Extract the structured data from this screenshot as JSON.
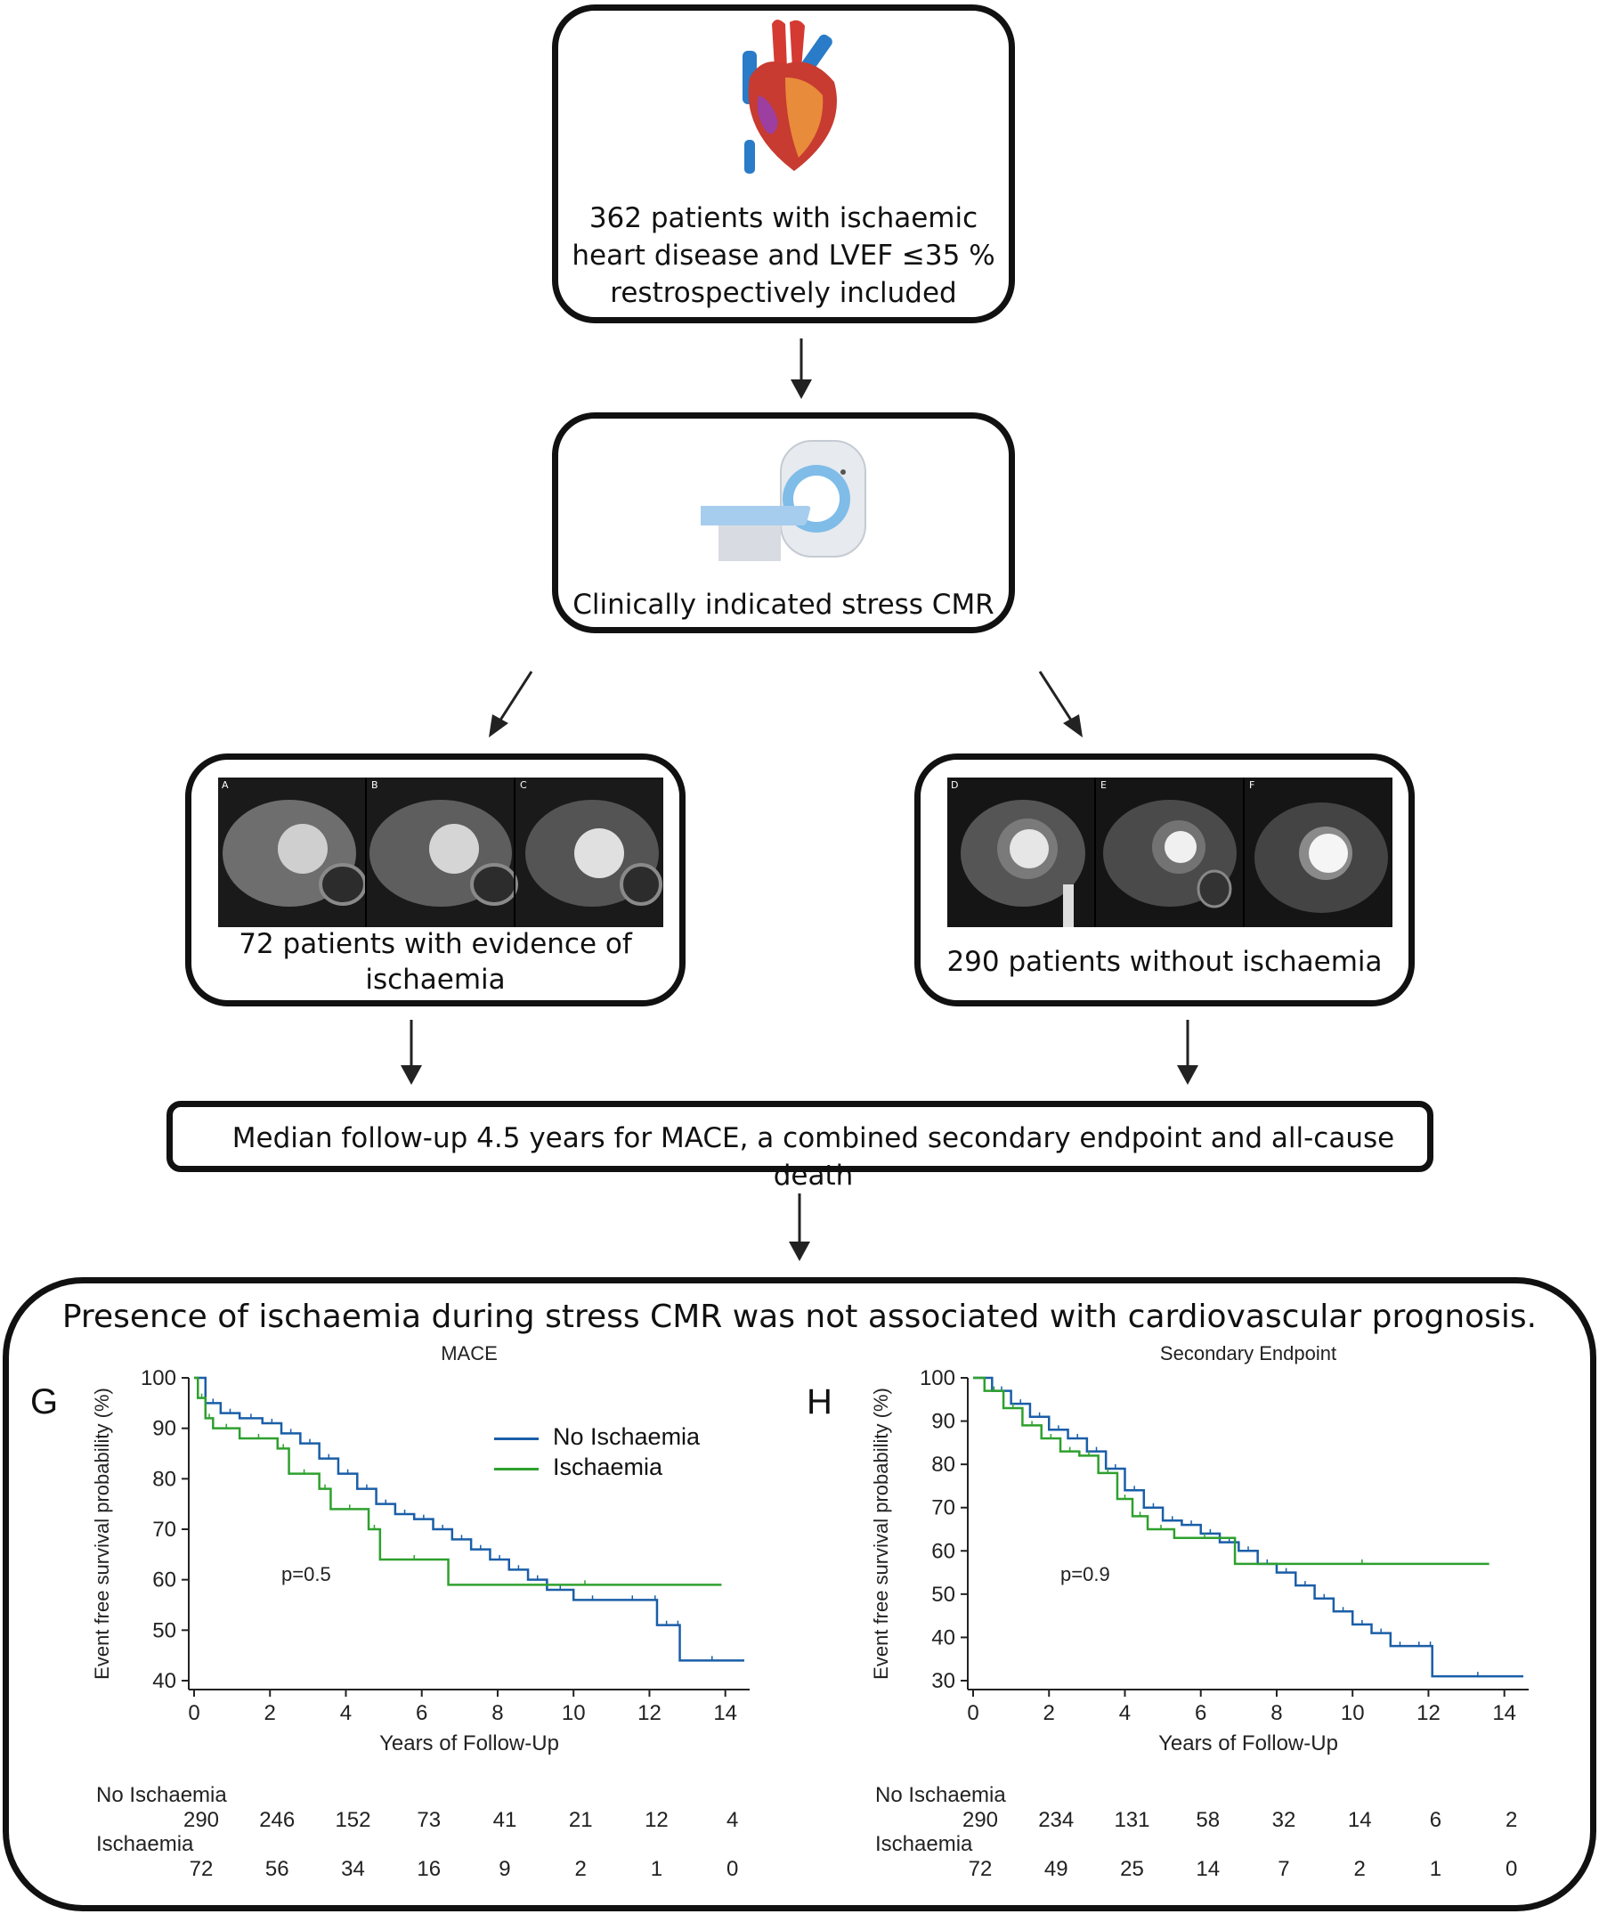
{
  "flow": {
    "box1": {
      "line1": "362 patients with ischaemic",
      "line2": "heart disease and LVEF ≤35 %",
      "line3": "restrospectively included",
      "icon": "heart-icon"
    },
    "box2": {
      "label": "Clinically indicated stress CMR",
      "icon": "mri-scanner-icon"
    },
    "box3": {
      "line1": "72 patients with evidence of",
      "line2": "ischaemia",
      "panels": [
        "A",
        "B",
        "C"
      ]
    },
    "box4": {
      "label": "290 patients without ischaemia",
      "panels": [
        "D",
        "E",
        "F"
      ]
    },
    "box5": {
      "label": "Median follow-up 4.5 years for MACE, a combined secondary endpoint and all-cause death"
    },
    "result": {
      "title": "Presence of ischaemia during stress CMR was not associated with cardiovascular prognosis."
    }
  },
  "colors": {
    "no_ischaemia": "#1a5ea8",
    "ischaemia": "#2ea02e",
    "border": "#111111"
  },
  "legend": {
    "series1": "No Ischaemia",
    "series2": "Ischaemia"
  },
  "chart_data": [
    {
      "type": "line",
      "panel": "G",
      "title": "MACE",
      "xlabel": "Years of Follow-Up",
      "ylabel": "Event free survival probability (%)",
      "xlim": [
        0,
        14.5
      ],
      "ylim": [
        40,
        100
      ],
      "xticks": [
        0,
        2,
        4,
        6,
        8,
        10,
        12,
        14
      ],
      "yticks": [
        40,
        50,
        60,
        70,
        80,
        90,
        100
      ],
      "annotation": "p=0.5",
      "series": [
        {
          "name": "No Ischaemia",
          "x": [
            0,
            0.3,
            0.7,
            1.2,
            1.8,
            2.3,
            2.8,
            3.3,
            3.8,
            4.3,
            4.8,
            5.3,
            5.8,
            6.3,
            6.8,
            7.3,
            7.8,
            8.3,
            8.8,
            9.3,
            10,
            11,
            12.1,
            12.2,
            12.7,
            12.8,
            14.5
          ],
          "y": [
            100,
            95,
            93,
            92,
            91,
            89,
            87,
            84,
            81,
            78,
            75,
            73,
            72,
            70,
            68,
            66,
            64,
            62,
            60,
            58,
            56,
            56,
            56,
            51,
            51,
            44,
            44
          ]
        },
        {
          "name": "Ischaemia",
          "x": [
            0,
            0.1,
            0.3,
            0.5,
            1.2,
            2.2,
            2.5,
            3.3,
            3.6,
            4.6,
            4.9,
            6.7,
            13.9
          ],
          "y": [
            100,
            96,
            92,
            90,
            88,
            86,
            81,
            78,
            74,
            70,
            64,
            59,
            59
          ]
        }
      ],
      "risk_table": {
        "groups": [
          "No Ischaemia",
          "Ischaemia"
        ],
        "times": [
          0,
          2,
          4,
          6,
          8,
          10,
          12,
          14
        ],
        "no_ischaemia": [
          "290",
          "246",
          "152",
          "73",
          "41",
          "21",
          "12",
          "4"
        ],
        "ischaemia": [
          "72",
          "56",
          "34",
          "16",
          "9",
          "2",
          "1",
          "0"
        ]
      }
    },
    {
      "type": "line",
      "panel": "H",
      "title": "Secondary Endpoint",
      "xlabel": "Years of Follow-Up",
      "ylabel": "Event free survival probability (%)",
      "xlim": [
        0,
        14.5
      ],
      "ylim": [
        30,
        100
      ],
      "xticks": [
        0,
        2,
        4,
        6,
        8,
        10,
        12,
        14
      ],
      "yticks": [
        30,
        40,
        50,
        60,
        70,
        80,
        90,
        100
      ],
      "annotation": "p=0.9",
      "series": [
        {
          "name": "No Ischaemia",
          "x": [
            0,
            0.5,
            1,
            1.5,
            2,
            2.5,
            3,
            3.5,
            4,
            4.5,
            5,
            5.5,
            6,
            6.5,
            7,
            7.5,
            8,
            8.5,
            9,
            9.5,
            10,
            10.5,
            11,
            11.5,
            12,
            12.1,
            14.5
          ],
          "y": [
            100,
            97,
            94,
            91,
            88,
            86,
            83,
            79,
            74,
            70,
            67,
            66,
            64,
            62,
            60,
            57,
            55,
            52,
            49,
            46,
            43,
            41,
            38,
            38,
            38,
            31,
            31
          ]
        },
        {
          "name": "Ischaemia",
          "x": [
            0,
            0.3,
            0.8,
            1.3,
            1.8,
            2.3,
            2.8,
            3.3,
            3.8,
            4.2,
            4.6,
            5.3,
            6.9,
            13.6
          ],
          "y": [
            100,
            97,
            93,
            89,
            86,
            83,
            82,
            78,
            72,
            68,
            65,
            63,
            57,
            57
          ]
        }
      ],
      "risk_table": {
        "groups": [
          "No Ischaemia",
          "Ischaemia"
        ],
        "times": [
          0,
          2,
          4,
          6,
          8,
          10,
          12,
          14
        ],
        "no_ischaemia": [
          "290",
          "234",
          "131",
          "58",
          "32",
          "14",
          "6",
          "2"
        ],
        "ischaemia": [
          "72",
          "49",
          "25",
          "14",
          "7",
          "2",
          "1",
          "0"
        ]
      }
    }
  ]
}
